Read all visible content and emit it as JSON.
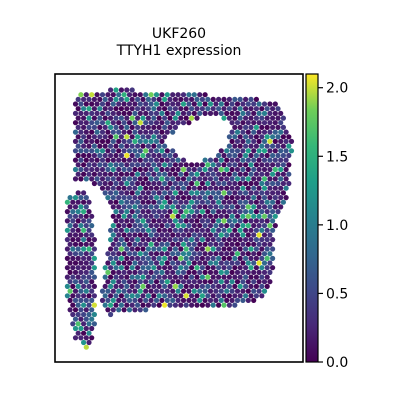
{
  "chart_data": {
    "type": "scatter",
    "subtype": "spatial-spot-hexbin",
    "title_line1": "UKF260",
    "title_line2": "TTYH1 expression",
    "colorbar": {
      "colormap": "viridis",
      "range": [
        0.0,
        2.1
      ],
      "ticks": [
        0.0,
        0.5,
        1.0,
        1.5,
        2.0
      ],
      "tick_labels": [
        "0.0",
        "0.5",
        "1.0",
        "1.5",
        "2.0"
      ]
    },
    "axes": {
      "ticks": "none",
      "frame": true
    },
    "value_distribution": "mostly 0.0-0.6, scattered spots 0.8-1.5, few up to 2.1",
    "colors": {
      "low": "#440154",
      "mid": "#21918c",
      "high": "#fde725"
    }
  }
}
